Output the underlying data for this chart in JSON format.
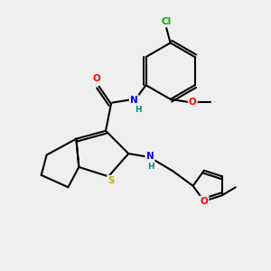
{
  "bg_color": "#efefef",
  "bond_color": "#000000",
  "atom_colors": {
    "Cl": "#00aa00",
    "O": "#ff0000",
    "N": "#0000ff",
    "S": "#bbaa00",
    "H": "#008888",
    "C": "#000000"
  },
  "lw": 1.5,
  "fs": 7.5
}
